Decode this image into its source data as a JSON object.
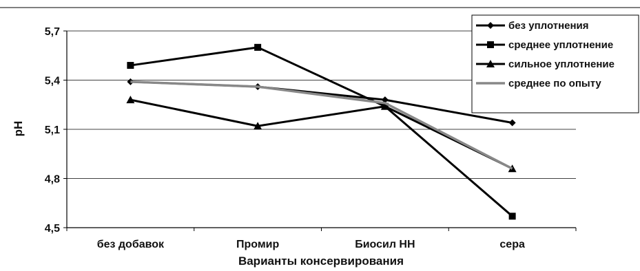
{
  "chart_data": {
    "type": "line",
    "title": "",
    "xlabel": "Варианты консервирования",
    "ylabel": "pH",
    "categories": [
      "без добавок",
      "Промир",
      "Биосил НН",
      "сера"
    ],
    "ylim": [
      4.5,
      5.7
    ],
    "yticks": [
      "4,5",
      "4,8",
      "5,1",
      "5,4",
      "5,7"
    ],
    "grid": true,
    "legend_position": "top-right",
    "series": [
      {
        "name": "без уплотнения",
        "values": [
          5.39,
          5.36,
          5.28,
          5.14
        ],
        "color": "#000000",
        "marker": "diamond"
      },
      {
        "name": "среднее уплотнение",
        "values": [
          5.49,
          5.6,
          5.24,
          4.57
        ],
        "color": "#000000",
        "marker": "square"
      },
      {
        "name": "сильное уплотнение",
        "values": [
          5.28,
          5.12,
          5.24,
          4.86
        ],
        "color": "#000000",
        "marker": "triangle"
      },
      {
        "name": "среднее по опыту",
        "values": [
          5.39,
          5.36,
          5.26,
          4.86
        ],
        "color": "#888888",
        "marker": "none"
      }
    ]
  }
}
